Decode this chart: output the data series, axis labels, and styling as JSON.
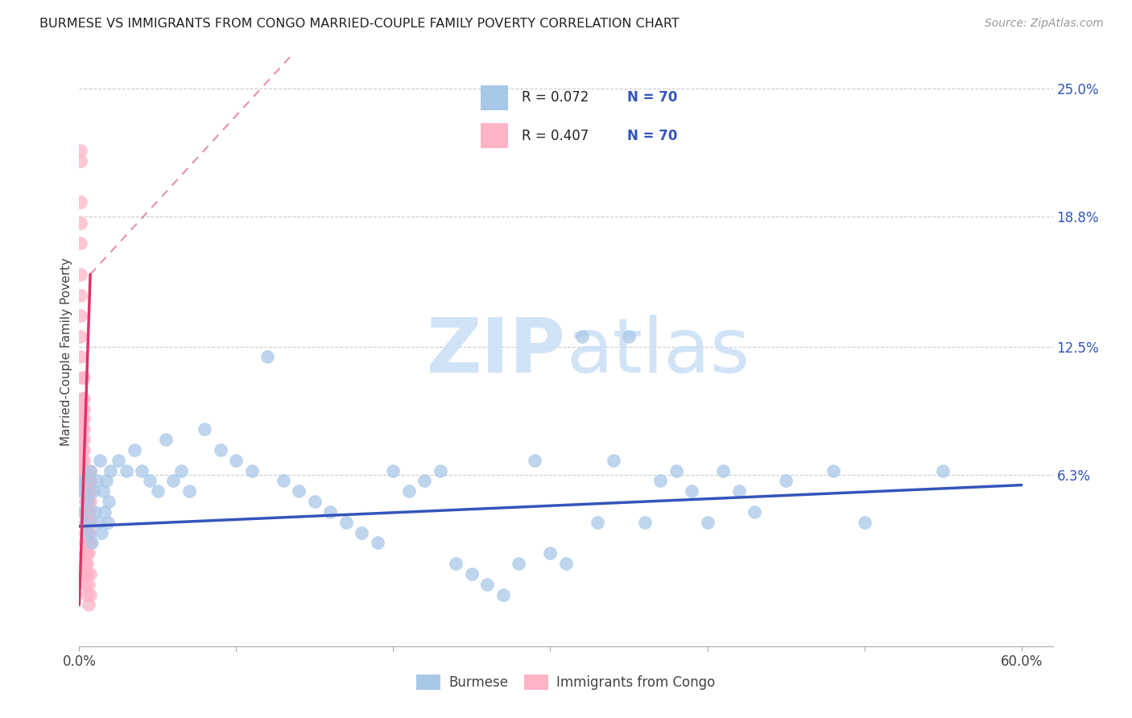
{
  "title": "BURMESE VS IMMIGRANTS FROM CONGO MARRIED-COUPLE FAMILY POVERTY CORRELATION CHART",
  "source": "Source: ZipAtlas.com",
  "ylabel": "Married-Couple Family Poverty",
  "xlim": [
    0.0,
    0.62
  ],
  "ylim": [
    -0.02,
    0.265
  ],
  "xticks": [
    0.0,
    0.1,
    0.2,
    0.3,
    0.4,
    0.5,
    0.6
  ],
  "xticklabels": [
    "0.0%",
    "",
    "",
    "",
    "",
    "",
    "60.0%"
  ],
  "ytick_positions": [
    0.063,
    0.125,
    0.188,
    0.25
  ],
  "ytick_labels": [
    "6.3%",
    "12.5%",
    "18.8%",
    "25.0%"
  ],
  "legend_label1": "Burmese",
  "legend_label2": "Immigrants from Congo",
  "R1": "0.072",
  "N1": "70",
  "R2": "0.407",
  "N2": "70",
  "color_blue": "#a8c8e8",
  "color_pink": "#ffb3c6",
  "color_trend_blue": "#3355bb",
  "color_trend_pink": "#dd3366",
  "watermark_color": "#cce0f5",
  "grid_color": "#cccccc",
  "burmese_x": [
    0.001,
    0.002,
    0.003,
    0.004,
    0.005,
    0.006,
    0.007,
    0.008,
    0.009,
    0.01,
    0.011,
    0.012,
    0.013,
    0.014,
    0.015,
    0.016,
    0.017,
    0.018,
    0.019,
    0.02,
    0.025,
    0.03,
    0.035,
    0.04,
    0.045,
    0.05,
    0.055,
    0.06,
    0.065,
    0.07,
    0.08,
    0.09,
    0.1,
    0.11,
    0.12,
    0.13,
    0.14,
    0.15,
    0.16,
    0.17,
    0.18,
    0.19,
    0.2,
    0.21,
    0.22,
    0.23,
    0.24,
    0.25,
    0.26,
    0.27,
    0.28,
    0.29,
    0.3,
    0.31,
    0.32,
    0.33,
    0.34,
    0.35,
    0.36,
    0.37,
    0.38,
    0.39,
    0.4,
    0.41,
    0.42,
    0.43,
    0.45,
    0.48,
    0.5,
    0.55
  ],
  "burmese_y": [
    0.055,
    0.045,
    0.06,
    0.04,
    0.05,
    0.035,
    0.065,
    0.03,
    0.055,
    0.045,
    0.06,
    0.04,
    0.07,
    0.035,
    0.055,
    0.045,
    0.06,
    0.04,
    0.05,
    0.065,
    0.07,
    0.065,
    0.075,
    0.065,
    0.06,
    0.055,
    0.08,
    0.06,
    0.065,
    0.055,
    0.085,
    0.075,
    0.07,
    0.065,
    0.12,
    0.06,
    0.055,
    0.05,
    0.045,
    0.04,
    0.035,
    0.03,
    0.065,
    0.055,
    0.06,
    0.065,
    0.02,
    0.015,
    0.01,
    0.005,
    0.02,
    0.07,
    0.025,
    0.02,
    0.13,
    0.04,
    0.07,
    0.13,
    0.04,
    0.06,
    0.065,
    0.055,
    0.04,
    0.065,
    0.055,
    0.045,
    0.06,
    0.065,
    0.04,
    0.065
  ],
  "congo_x": [
    0.001,
    0.001,
    0.001,
    0.001,
    0.001,
    0.001,
    0.001,
    0.001,
    0.001,
    0.001,
    0.002,
    0.002,
    0.002,
    0.002,
    0.002,
    0.002,
    0.002,
    0.002,
    0.002,
    0.002,
    0.003,
    0.003,
    0.003,
    0.003,
    0.003,
    0.003,
    0.003,
    0.003,
    0.003,
    0.003,
    0.004,
    0.004,
    0.004,
    0.004,
    0.004,
    0.004,
    0.004,
    0.004,
    0.004,
    0.004,
    0.005,
    0.005,
    0.005,
    0.005,
    0.005,
    0.005,
    0.005,
    0.005,
    0.005,
    0.005,
    0.006,
    0.006,
    0.006,
    0.006,
    0.006,
    0.006,
    0.006,
    0.006,
    0.006,
    0.006,
    0.007,
    0.007,
    0.007,
    0.007,
    0.007,
    0.007,
    0.007,
    0.007,
    0.007,
    0.007
  ],
  "congo_y": [
    0.22,
    0.215,
    0.195,
    0.185,
    0.175,
    0.16,
    0.15,
    0.14,
    0.13,
    0.12,
    0.11,
    0.1,
    0.095,
    0.09,
    0.085,
    0.08,
    0.075,
    0.07,
    0.065,
    0.06,
    0.11,
    0.1,
    0.095,
    0.09,
    0.085,
    0.08,
    0.075,
    0.07,
    0.065,
    0.06,
    0.055,
    0.05,
    0.045,
    0.04,
    0.035,
    0.03,
    0.025,
    0.02,
    0.015,
    0.01,
    0.055,
    0.05,
    0.045,
    0.04,
    0.035,
    0.03,
    0.025,
    0.02,
    0.015,
    0.005,
    0.06,
    0.055,
    0.05,
    0.045,
    0.04,
    0.035,
    0.03,
    0.025,
    0.01,
    0.0,
    0.065,
    0.06,
    0.055,
    0.05,
    0.045,
    0.04,
    0.035,
    0.03,
    0.015,
    0.005
  ],
  "trend_blue_x0": 0.0,
  "trend_blue_x1": 0.6,
  "trend_blue_y0": 0.038,
  "trend_blue_y1": 0.058,
  "trend_pink_solid_x0": 0.0,
  "trend_pink_solid_x1": 0.007,
  "trend_pink_solid_y0": 0.0,
  "trend_pink_solid_y1": 0.16,
  "trend_pink_dash_x0": 0.007,
  "trend_pink_dash_x1": 0.14,
  "trend_pink_dash_y0": 0.16,
  "trend_pink_dash_y1": 0.27
}
